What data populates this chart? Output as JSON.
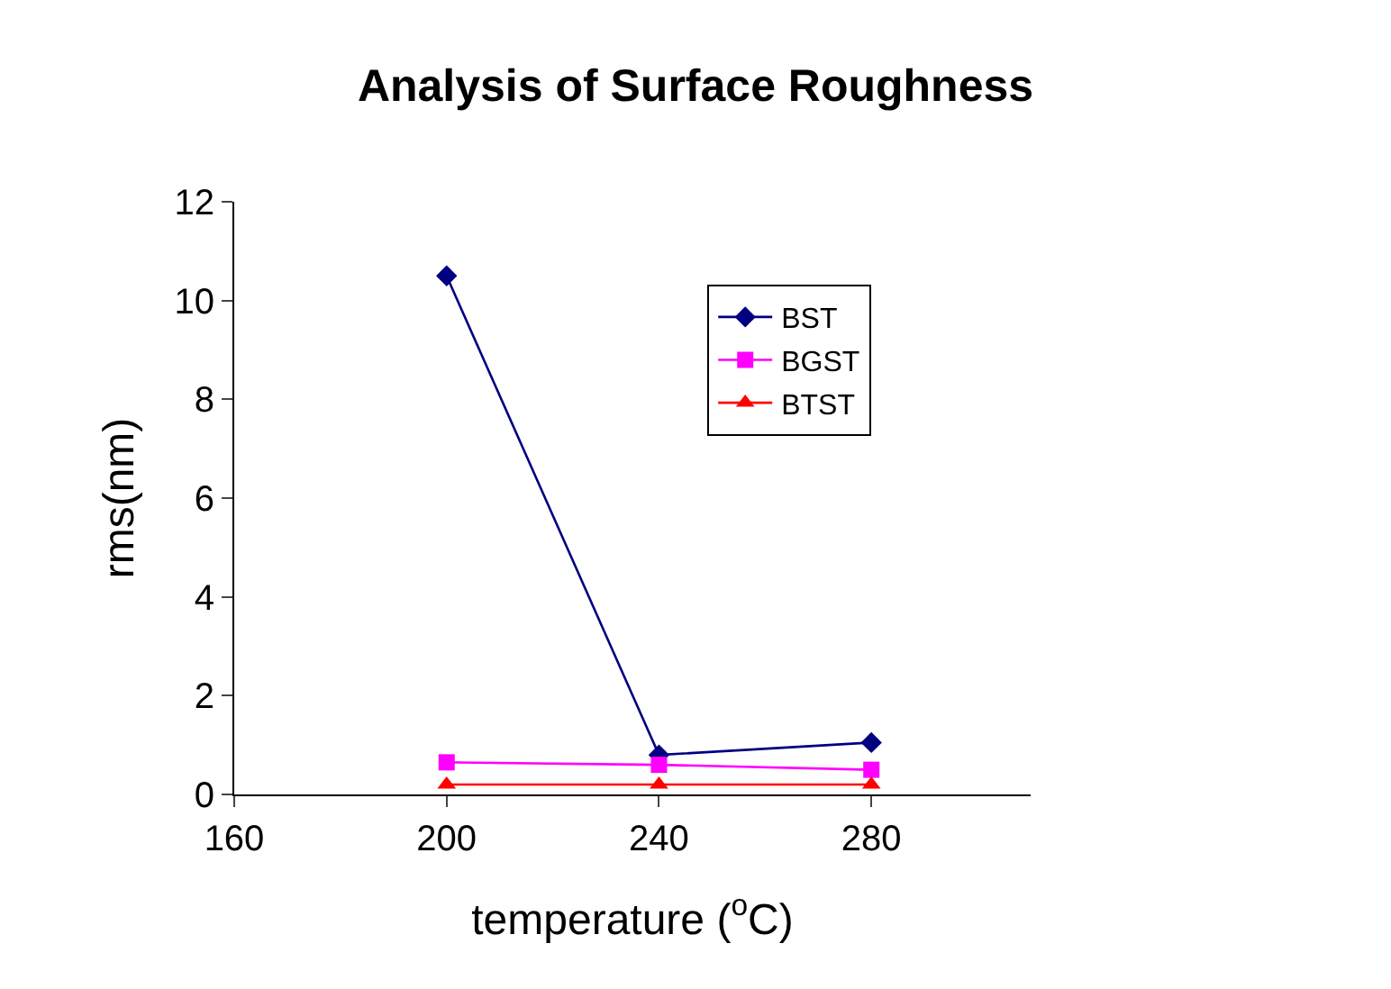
{
  "chart_data": {
    "type": "line",
    "title": "Analysis of Surface Roughness",
    "xlabel": "temperature ($^{o}$C)",
    "ylabel": "rms(nm)",
    "x": [
      200,
      240,
      280
    ],
    "series": [
      {
        "name": "BST",
        "color": "#000080",
        "marker": "diamond",
        "values": [
          10.5,
          0.8,
          1.05
        ]
      },
      {
        "name": "BGST",
        "color": "#ff00ff",
        "marker": "square",
        "values": [
          0.65,
          0.6,
          0.5
        ]
      },
      {
        "name": "BTST",
        "color": "#ff0000",
        "marker": "triangle",
        "values": [
          0.2,
          0.2,
          0.2
        ]
      }
    ],
    "xlim": [
      160,
      310
    ],
    "xticks": [
      160,
      200,
      240,
      280
    ],
    "ylim": [
      0,
      12
    ],
    "yticks": [
      0,
      2,
      4,
      6,
      8,
      10,
      12
    ],
    "legend": "top right",
    "line_style": "solid"
  }
}
